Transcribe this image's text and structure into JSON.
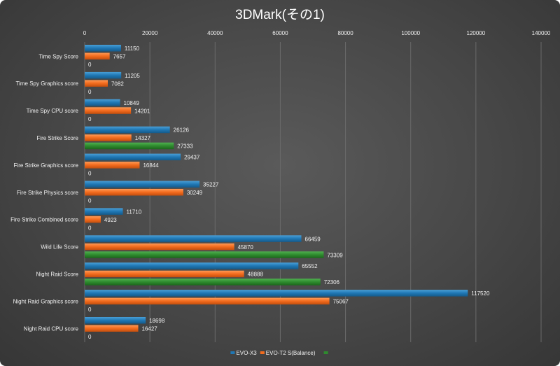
{
  "chart_data": {
    "type": "bar",
    "orientation": "horizontal",
    "title": "3DMark(その1)",
    "xlim": [
      0,
      140000
    ],
    "x_ticks": [
      0,
      20000,
      40000,
      60000,
      80000,
      100000,
      120000,
      140000
    ],
    "x_axis_position": "top",
    "grid": true,
    "legend_position": "bottom",
    "categories": [
      "Time Spy Score",
      "Time Spy Graphics score",
      "Time Spy CPU score",
      "Fire Strike Score",
      "Fire Strike Graphics score",
      "Fire Strike Physics score",
      "Fire Strike Combined score",
      "Wild Life Score",
      "Night Raid Score",
      "Night Raid Graphics score",
      "Night Raid CPU score"
    ],
    "series": [
      {
        "name": "EVO-X3",
        "color": "#1f77b4",
        "values": [
          11150,
          11205,
          10849,
          26126,
          29437,
          35227,
          11710,
          66459,
          65552,
          117520,
          18698
        ]
      },
      {
        "name": "EVO-T2 S(Balance)",
        "color": "#f26b1d",
        "values": [
          7657,
          7082,
          14201,
          14327,
          16844,
          30249,
          4923,
          45870,
          48888,
          75067,
          16427
        ]
      },
      {
        "name": "",
        "color": "#2e8b2e",
        "values": [
          0,
          0,
          0,
          27333,
          0,
          0,
          0,
          73309,
          72306,
          0,
          0
        ]
      }
    ]
  }
}
